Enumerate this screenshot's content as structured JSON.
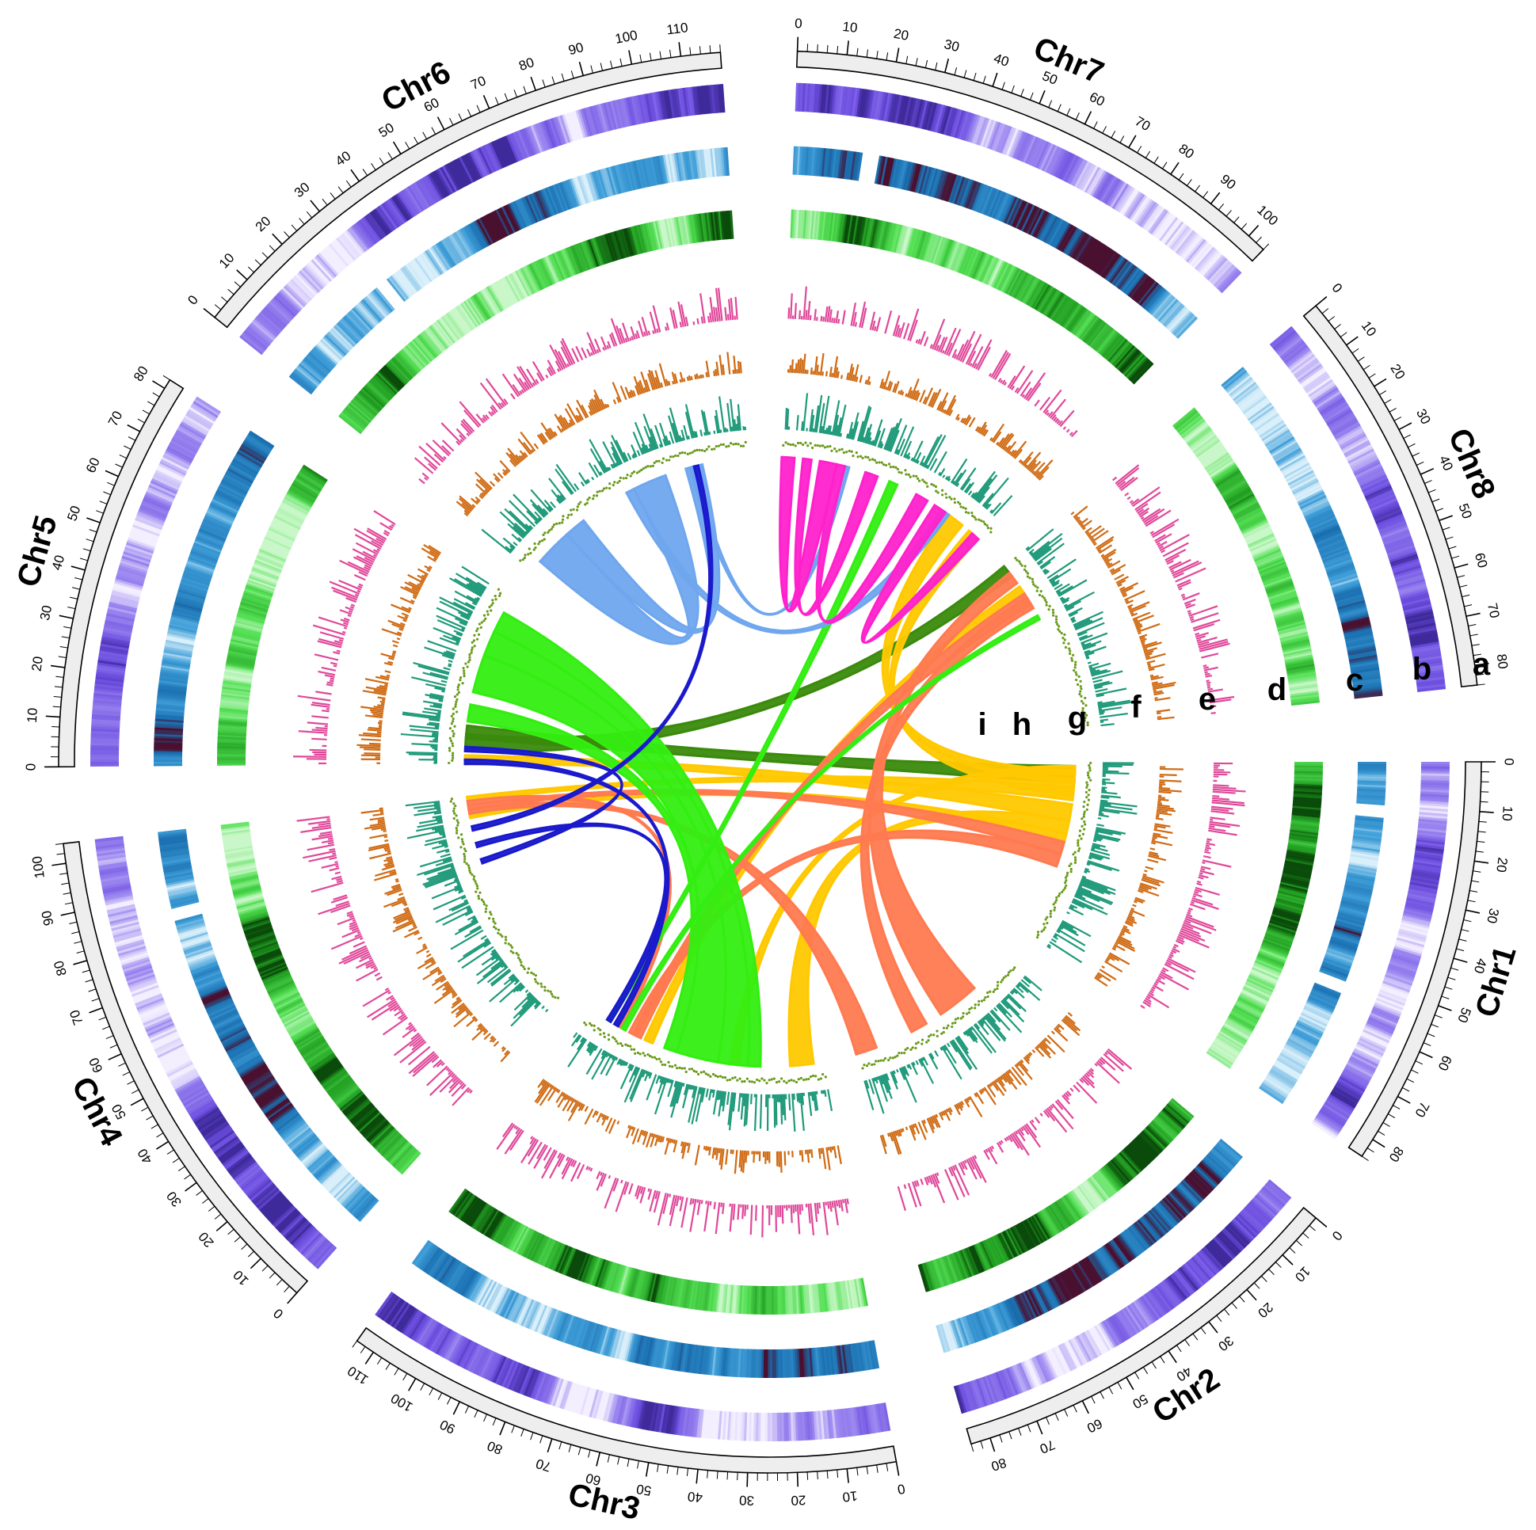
{
  "chart_data": {
    "type": "circos",
    "chromosomes": [
      {
        "name": "Chr1",
        "length": 84,
        "label_step": 10
      },
      {
        "name": "Chr2",
        "length": 84,
        "label_step": 10
      },
      {
        "name": "Chr3",
        "length": 114,
        "label_step": 10
      },
      {
        "name": "Chr4",
        "length": 104,
        "label_step": 10
      },
      {
        "name": "Chr5",
        "length": 82,
        "label_step": 10
      },
      {
        "name": "Chr6",
        "length": 118,
        "label_step": 10
      },
      {
        "name": "Chr7",
        "length": 104,
        "label_step": 10
      },
      {
        "name": "Chr8",
        "length": 84,
        "label_step": 10
      }
    ],
    "tracks": [
      {
        "letter": "a",
        "kind": "ideogram"
      },
      {
        "letter": "b",
        "kind": "heatmap",
        "color": "#7b61e8"
      },
      {
        "letter": "c",
        "kind": "heatmap",
        "color": "#2a86c6"
      },
      {
        "letter": "d",
        "kind": "heatmap",
        "color": "#3bd33b"
      },
      {
        "letter": "e",
        "kind": "histogram",
        "color": "#e0489a"
      },
      {
        "letter": "f",
        "kind": "histogram",
        "color": "#d06a12"
      },
      {
        "letter": "g",
        "kind": "histogram",
        "color": "#1f9a7a"
      },
      {
        "letter": "h",
        "kind": "scatter",
        "color": "#6a9a1a"
      },
      {
        "letter": "i",
        "kind": "links"
      }
    ],
    "gaps": [
      {
        "chr": "Chr1",
        "track": "c",
        "start": 10,
        "end": 13
      },
      {
        "chr": "Chr1",
        "track": "c",
        "start": 52,
        "end": 55
      },
      {
        "chr": "Chr4",
        "track": "c",
        "start": 83,
        "end": 86
      },
      {
        "chr": "Chr6",
        "track": "c",
        "start": 29,
        "end": 32
      },
      {
        "chr": "Chr7",
        "track": "c",
        "start": 16,
        "end": 20
      }
    ],
    "links": [
      {
        "from": [
          "Chr1",
          2,
          10
        ],
        "to": [
          "Chr5",
          12,
          18
        ],
        "color": "#3a8a0c"
      },
      {
        "from": [
          "Chr8",
          0,
          6
        ],
        "to": [
          "Chr5",
          6,
          14
        ],
        "color": "#3a8a0c"
      },
      {
        "from": [
          "Chr1",
          4,
          10
        ],
        "to": [
          "Chr7",
          84,
          92
        ],
        "color": "#ffc800"
      },
      {
        "from": [
          "Chr1",
          8,
          16
        ],
        "to": [
          "Chr7",
          96,
          102
        ],
        "color": "#ffc800"
      },
      {
        "from": [
          "Chr1",
          20,
          28
        ],
        "to": [
          "Chr5",
          0,
          4
        ],
        "color": "#ffc800"
      },
      {
        "from": [
          "Chr1",
          12,
          18
        ],
        "to": [
          "Chr4",
          102,
          104
        ],
        "color": "#ffc800"
      },
      {
        "from": [
          "Chr1",
          28,
          34
        ],
        "to": [
          "Chr3",
          5,
          16
        ],
        "color": "#ffc800"
      },
      {
        "from": [
          "Chr1",
          34,
          38
        ],
        "to": [
          "Chr4",
          94,
          96
        ],
        "color": "#ffc800"
      },
      {
        "from": [
          "Chr1",
          2,
          6
        ],
        "to": [
          "Chr3",
          40,
          44
        ],
        "color": "#ffc800"
      },
      {
        "from": [
          "Chr8",
          12,
          16
        ],
        "to": [
          "Chr3",
          82,
          86
        ],
        "color": "#ffc800"
      },
      {
        "from": [
          "Chr8",
          16,
          22
        ],
        "to": [
          "Chr3",
          88,
          92
        ],
        "color": "#ff7a50"
      },
      {
        "from": [
          "Chr1",
          38,
          44
        ],
        "to": [
          "Chr4",
          98,
          100
        ],
        "color": "#ff7a50"
      },
      {
        "from": [
          "Chr1",
          44,
          50
        ],
        "to": [
          "Chr3",
          90,
          94
        ],
        "color": "#ff7a50"
      },
      {
        "from": [
          "Chr8",
          4,
          10
        ],
        "to": [
          "Chr2",
          20,
          40
        ],
        "color": "#ff7a50"
      },
      {
        "from": [
          "Chr8",
          18,
          24
        ],
        "to": [
          "Chr2",
          48,
          56
        ],
        "color": "#ff7a50"
      },
      {
        "from": [
          "Chr4",
          96,
          98
        ],
        "to": [
          "Chr2",
          74,
          84
        ],
        "color": "#ff7a50"
      },
      {
        "from": [
          "Chr3",
          98,
          102
        ],
        "to": [
          "Chr4",
          100,
          102
        ],
        "color": "#ff7a50"
      },
      {
        "from": [
          "Chr5",
          34,
          52
        ],
        "to": [
          "Chr3",
          50,
          70
        ],
        "color": "#33ee11"
      },
      {
        "from": [
          "Chr5",
          52,
          64
        ],
        "to": [
          "Chr3",
          36,
          50
        ],
        "color": "#33ee11"
      },
      {
        "from": [
          "Chr5",
          64,
          74
        ],
        "to": [
          "Chr3",
          30,
          36
        ],
        "color": "#33ee11"
      },
      {
        "from": [
          "Chr5",
          20,
          28
        ],
        "to": [
          "Chr3",
          70,
          76
        ],
        "color": "#33ee11"
      },
      {
        "from": [
          "Chr8",
          28,
          30
        ],
        "to": [
          "Chr3",
          96,
          98
        ],
        "color": "#33ee11"
      },
      {
        "from": [
          "Chr7",
          52,
          56
        ],
        "to": [
          "Chr3",
          104,
          106
        ],
        "color": "#33ee11"
      },
      {
        "from": [
          "Chr6",
          6,
          24
        ],
        "to": [
          "Chr6",
          62,
          78
        ],
        "color": "#6fa6ee"
      },
      {
        "from": [
          "Chr6",
          24,
          34
        ],
        "to": [
          "Chr6",
          88,
          96
        ],
        "color": "#6fa6ee"
      },
      {
        "from": [
          "Chr6",
          58,
          62
        ],
        "to": [
          "Chr7",
          80,
          84
        ],
        "color": "#6fa6ee"
      },
      {
        "from": [
          "Chr6",
          90,
          92
        ],
        "to": [
          "Chr7",
          30,
          32
        ],
        "color": "#6fa6ee"
      },
      {
        "from": [
          "Chr7",
          0,
          6
        ],
        "to": [
          "Chr7",
          18,
          26
        ],
        "color": "#ff22cc"
      },
      {
        "from": [
          "Chr7",
          10,
          14
        ],
        "to": [
          "Chr7",
          40,
          46
        ],
        "color": "#ff22cc"
      },
      {
        "from": [
          "Chr7",
          26,
          30
        ],
        "to": [
          "Chr7",
          66,
          72
        ],
        "color": "#ff22cc"
      },
      {
        "from": [
          "Chr7",
          76,
          82
        ],
        "to": [
          "Chr7",
          98,
          102
        ],
        "color": "#ff22cc"
      },
      {
        "from": [
          "Chr6",
          92,
          94
        ],
        "to": [
          "Chr4",
          88,
          90
        ],
        "color": "#1a1acc"
      },
      {
        "from": [
          "Chr5",
          0,
          2
        ],
        "to": [
          "Chr3",
          100,
          102
        ],
        "color": "#1a1acc"
      },
      {
        "from": [
          "Chr5",
          6,
          8
        ],
        "to": [
          "Chr4",
          72,
          74
        ],
        "color": "#1a1acc"
      },
      {
        "from": [
          "Chr3",
          104,
          106
        ],
        "to": [
          "Chr4",
          80,
          82
        ],
        "color": "#1a1acc"
      }
    ]
  }
}
